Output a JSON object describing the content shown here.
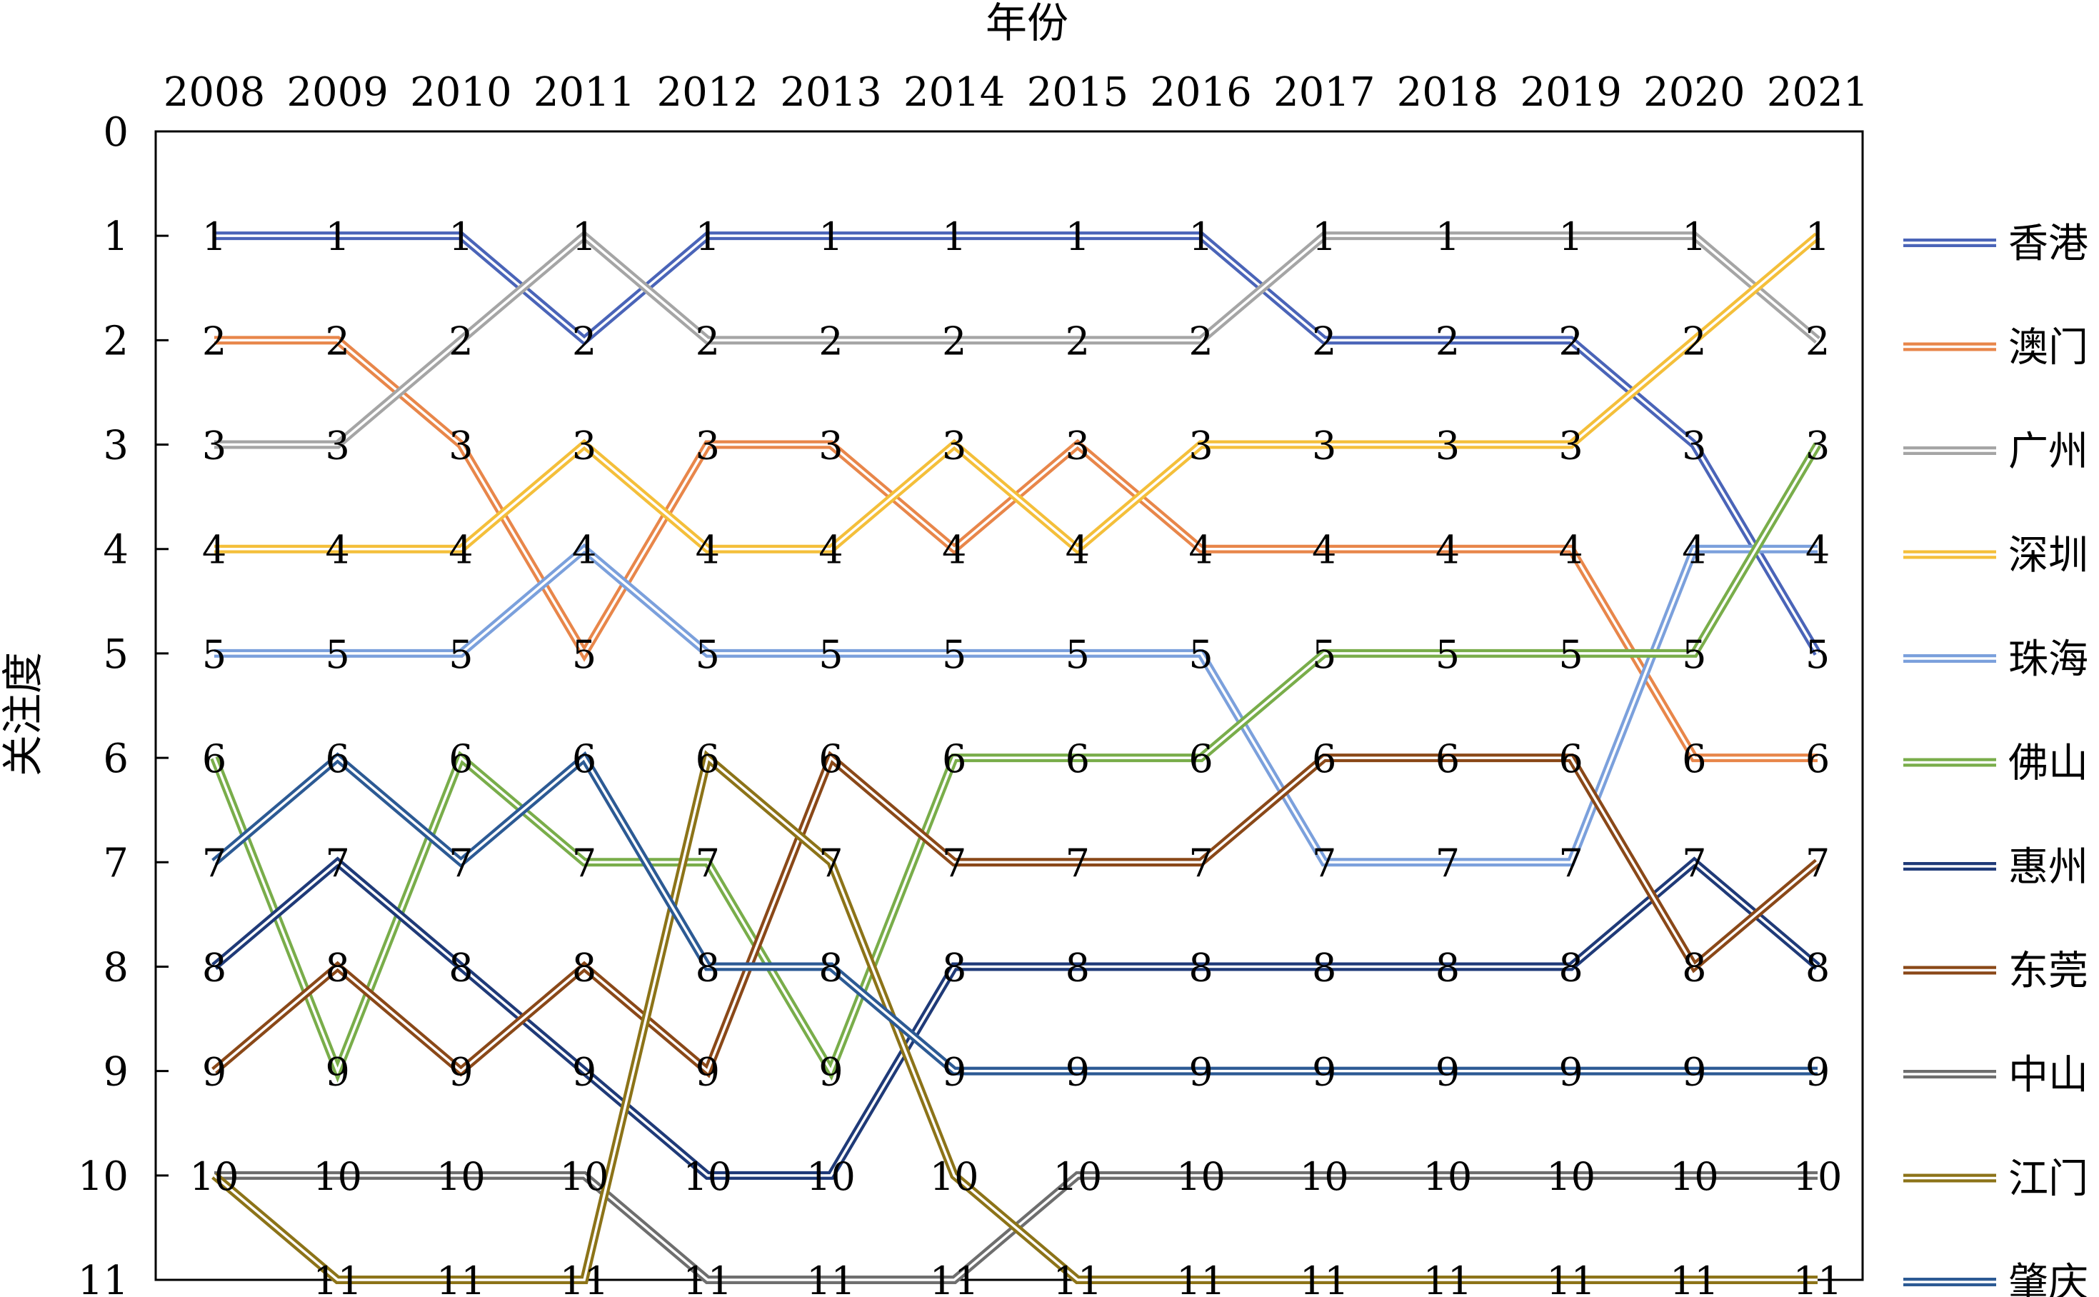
{
  "chart_data": {
    "type": "line",
    "xlabel": "年份",
    "ylabel": "关注度",
    "x": [
      "2008",
      "2009",
      "2010",
      "2011",
      "2012",
      "2013",
      "2014",
      "2015",
      "2016",
      "2017",
      "2018",
      "2019",
      "2020",
      "2021"
    ],
    "y_ticks": [
      "0",
      "1",
      "2",
      "3",
      "4",
      "5",
      "6",
      "7",
      "8",
      "9",
      "10",
      "11"
    ],
    "ylim": [
      0,
      11
    ],
    "y_inverted": true,
    "x_axis_position": "top",
    "legend_position": "right",
    "series": [
      {
        "name": "香港",
        "color": "#4a64b8",
        "values": [
          1,
          1,
          1,
          2,
          1,
          1,
          1,
          1,
          1,
          2,
          2,
          2,
          3,
          5
        ]
      },
      {
        "name": "澳门",
        "color": "#e8864a",
        "values": [
          2,
          2,
          3,
          5,
          3,
          3,
          4,
          3,
          4,
          4,
          4,
          4,
          6,
          6
        ]
      },
      {
        "name": "广州",
        "color": "#a5a5a5",
        "values": [
          3,
          3,
          2,
          1,
          2,
          2,
          2,
          2,
          2,
          1,
          1,
          1,
          1,
          2
        ]
      },
      {
        "name": "深圳",
        "color": "#f4bf3a",
        "values": [
          4,
          4,
          4,
          3,
          4,
          4,
          3,
          4,
          3,
          3,
          3,
          3,
          2,
          1
        ]
      },
      {
        "name": "珠海",
        "color": "#7ba0dc",
        "values": [
          5,
          5,
          5,
          4,
          5,
          5,
          5,
          5,
          5,
          7,
          7,
          7,
          4,
          4
        ]
      },
      {
        "name": "佛山",
        "color": "#79ad4a",
        "values": [
          6,
          9,
          6,
          7,
          7,
          9,
          6,
          6,
          6,
          5,
          5,
          5,
          5,
          3
        ]
      },
      {
        "name": "惠州",
        "color": "#1f3a78",
        "values": [
          8,
          7,
          8,
          9,
          10,
          10,
          8,
          8,
          8,
          8,
          8,
          8,
          7,
          8
        ]
      },
      {
        "name": "东莞",
        "color": "#8a4818",
        "values": [
          9,
          8,
          9,
          8,
          9,
          6,
          7,
          7,
          7,
          6,
          6,
          6,
          8,
          7
        ]
      },
      {
        "name": "中山",
        "color": "#6e6e6e",
        "values": [
          10,
          10,
          10,
          10,
          11,
          11,
          11,
          10,
          10,
          10,
          10,
          10,
          10,
          10
        ]
      },
      {
        "name": "江门",
        "color": "#8c7318",
        "values": [
          10,
          11,
          11,
          11,
          6,
          7,
          10,
          11,
          11,
          11,
          11,
          11,
          11,
          11
        ]
      },
      {
        "name": "肇庆",
        "color": "#2c5a94",
        "values": [
          7,
          6,
          7,
          6,
          8,
          8,
          9,
          9,
          9,
          9,
          9,
          9,
          9,
          9
        ]
      }
    ]
  }
}
